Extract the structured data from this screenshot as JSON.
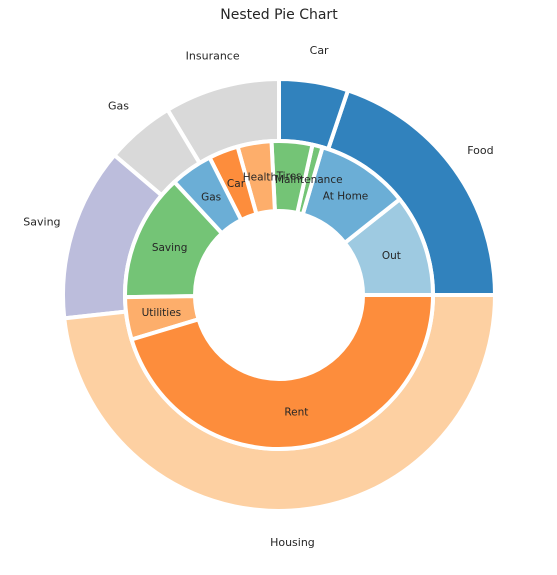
{
  "chart_data": {
    "type": "pie",
    "subtype": "nested-donut",
    "title": "Nested Pie Chart",
    "outer": [
      {
        "label": "Food",
        "value": 23,
        "color": "#3182bd"
      },
      {
        "label": "Car",
        "value": 6,
        "color": "#3182bd"
      },
      {
        "label": "Insurance",
        "value": 10,
        "color": "#d9d9d9"
      },
      {
        "label": "Gas",
        "value": 6,
        "color": "#d9d9d9"
      },
      {
        "label": "Saving",
        "value": 15,
        "color": "#bcbddc"
      },
      {
        "label": "Housing",
        "value": 56,
        "color": "#fdd0a2"
      }
    ],
    "inner": [
      {
        "label": "Out",
        "value": 12,
        "color": "#9ecae1"
      },
      {
        "label": "At Home",
        "value": 11,
        "color": "#6baed6"
      },
      {
        "label": "Maintenance",
        "value": 1.2,
        "color": "#74c476"
      },
      {
        "label": "Tires",
        "value": 4.8,
        "color": "#74c476"
      },
      {
        "label": "Health",
        "value": 4,
        "color": "#fdae6b"
      },
      {
        "label": "Car",
        "value": 3.5,
        "color": "#fd8d3c"
      },
      {
        "label": "Gas",
        "value": 5,
        "color": "#6baed6"
      },
      {
        "label": "Saving",
        "value": 15,
        "color": "#74c476"
      },
      {
        "label": "Utilities",
        "value": 5,
        "color": "#fdae6b"
      },
      {
        "label": "Rent",
        "value": 51,
        "color": "#fd8d3c"
      }
    ]
  }
}
